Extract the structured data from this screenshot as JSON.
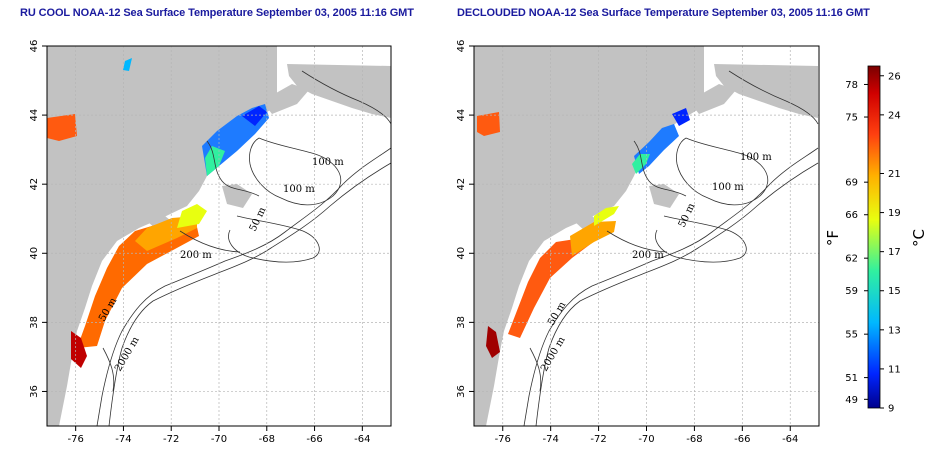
{
  "titles": {
    "left": "RU COOL NOAA-12 Sea Surface Temperature September 03, 2005 11:16 GMT",
    "right": "DECLOUDED NOAA-12 Sea Surface Temperature September 03, 2005 11:16 GMT"
  },
  "axes": {
    "lon_ticks": [
      "-76",
      "-74",
      "-72",
      "-70",
      "-68",
      "-66",
      "-64"
    ],
    "lon_values": [
      -76,
      -74,
      -72,
      -70,
      -68,
      -66,
      -64
    ],
    "lat_ticks": [
      "36",
      "38",
      "40",
      "42",
      "44",
      "46"
    ],
    "lat_values": [
      36,
      38,
      40,
      42,
      44,
      46
    ],
    "lon_range": [
      -77.2,
      -62.8
    ],
    "lat_range": [
      35,
      46
    ]
  },
  "depth_labels": {
    "left": [
      "100 m",
      "100 m",
      "50 m",
      "200 m",
      "50 m",
      "2000 m"
    ],
    "right": [
      "100 m",
      "100 m",
      "50 m",
      "200 m",
      "50 m",
      "2000 m"
    ]
  },
  "colorbar": {
    "celsius_ticks": [
      "26",
      "24",
      "21",
      "19",
      "17",
      "15",
      "13",
      "11",
      "9"
    ],
    "celsius_values": [
      26,
      24,
      21,
      19,
      17,
      15,
      13,
      11,
      9
    ],
    "fahrenheit_ticks": [
      "78",
      "75",
      "69",
      "66",
      "62",
      "59",
      "55",
      "51",
      "49"
    ],
    "fahrenheit_values": [
      78,
      75,
      69,
      66,
      62,
      59,
      55,
      51,
      49
    ],
    "range_c": [
      9,
      26.5
    ],
    "celsius_unit": "°C",
    "fahrenheit_unit": "°F"
  },
  "colors": {
    "land": "#c2c2c2",
    "ocean": "#ffffff",
    "grid": "#b5b5b5",
    "contour": "#333333",
    "title": "#1a1a9e"
  }
}
